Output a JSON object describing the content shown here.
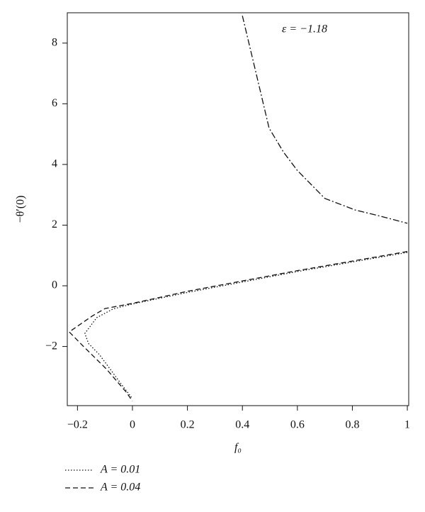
{
  "chart_data": {
    "type": "line",
    "annotation": "ε = −1.18",
    "x_label": "f₀",
    "y_label": "−θ′(0)",
    "xlim": [
      -0.237,
      1.005
    ],
    "ylim": [
      -3.95,
      9.0
    ],
    "xticks": [
      {
        "value": -0.2,
        "label": "−0.2"
      },
      0,
      0.2,
      0.4,
      0.6,
      0.8,
      1
    ],
    "yticks": [
      {
        "value": -2,
        "label": "−2"
      },
      0,
      2,
      4,
      6,
      8
    ],
    "series": [
      {
        "name": "A = 0.01",
        "color": "#111111",
        "dash": "dotted",
        "x": [
          1.0,
          0.6,
          0.2,
          0.0,
          -0.07,
          -0.13,
          -0.173,
          -0.16,
          -0.12,
          -0.044,
          0.0
        ],
        "values": [
          1.1,
          0.47,
          -0.22,
          -0.6,
          -0.76,
          -1.05,
          -1.57,
          -1.9,
          -2.27,
          -3.2,
          -3.72
        ]
      },
      {
        "name": "A = 0.04",
        "color": "#111111",
        "dash": "dashed",
        "x": [
          1.0,
          0.6,
          0.2,
          0.0,
          -0.1,
          -0.147,
          -0.23,
          -0.178,
          -0.095,
          -0.023,
          0.0
        ],
        "values": [
          1.13,
          0.5,
          -0.18,
          -0.58,
          -0.75,
          -1.0,
          -1.52,
          -2.0,
          -2.74,
          -3.5,
          -3.8
        ]
      },
      {
        "color": "#111111",
        "dash": "dashdot",
        "x": [
          0.4,
          0.45,
          0.497,
          0.55,
          0.6,
          0.7,
          0.81,
          0.9,
          1.0
        ],
        "values": [
          8.9,
          7.0,
          5.2,
          4.4,
          3.8,
          2.88,
          2.5,
          2.3,
          2.06
        ]
      }
    ]
  }
}
